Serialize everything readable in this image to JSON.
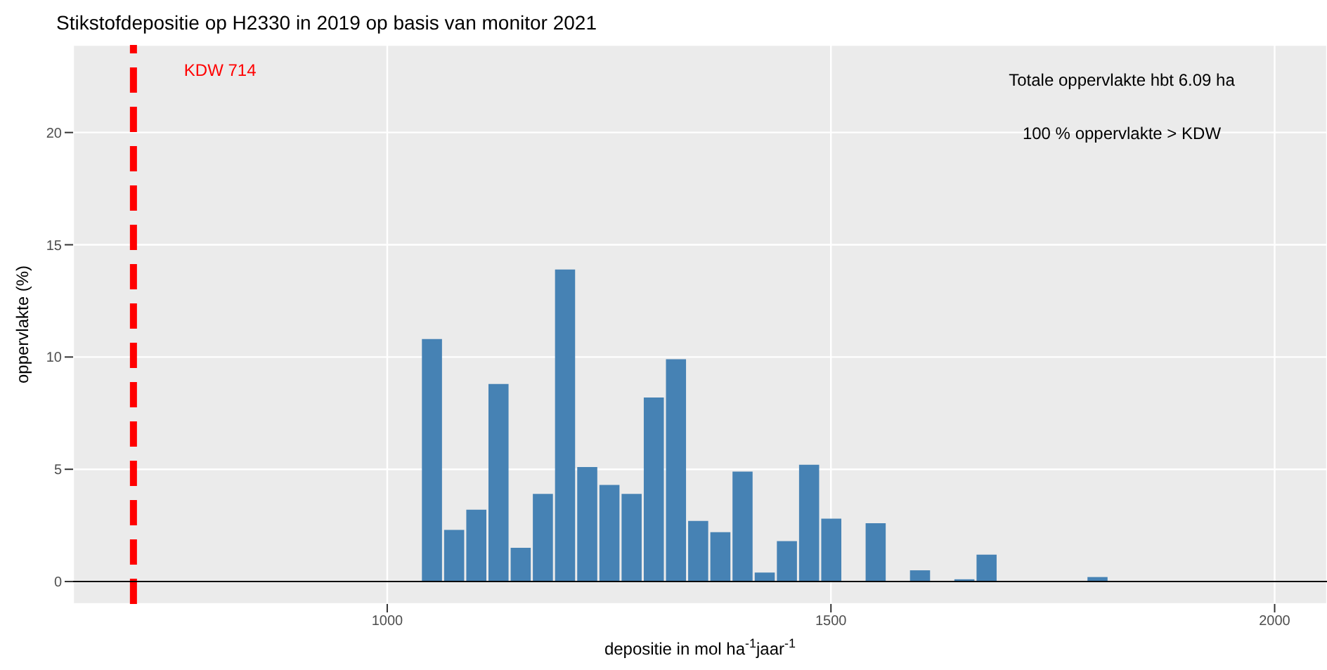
{
  "chart_data": {
    "type": "histogram",
    "title": "Stikstofdepositie op H2330 in 2019 op basis van monitor 2021",
    "xlabel": "depositie in mol ha$^{-1}$jaar$^{-1}$",
    "ylabel": "oppervlakte (%)",
    "bins": [
      1037.5,
      1062.5,
      1087.5,
      1112.5,
      1137.5,
      1162.5,
      1187.5,
      1212.5,
      1237.5,
      1262.5,
      1287.5,
      1312.5,
      1337.5,
      1362.5,
      1387.5,
      1412.5,
      1437.5,
      1462.5,
      1487.5,
      1512.5,
      1537.5,
      1562.5,
      1587.5,
      1612.5,
      1637.5,
      1662.5,
      1687.5,
      1712.5,
      1737.5,
      1762.5,
      1787.5,
      1812.5
    ],
    "values": [
      10.8,
      2.3,
      3.2,
      8.8,
      1.5,
      3.9,
      13.9,
      5.1,
      4.3,
      3.9,
      8.2,
      9.9,
      2.7,
      2.2,
      4.9,
      0.4,
      1.8,
      5.2,
      2.8,
      0,
      2.6,
      0,
      0.5,
      0,
      0.1,
      1.2,
      0,
      0,
      0,
      0,
      0.2
    ],
    "color": "#4682b4",
    "xlim": [
      646,
      2059
    ],
    "xticks": [
      1000,
      1500,
      2000
    ],
    "ylim": [
      -1,
      23.9
    ],
    "yticks": [
      0,
      5,
      10,
      15,
      20
    ],
    "grid": true,
    "ref_lines": [
      {
        "axis": "x",
        "value": 714,
        "label": "KDW 714",
        "color": "#ff0000",
        "line_style": "dashed"
      },
      {
        "axis": "y",
        "value": 0,
        "color": "#000000",
        "line_style": "solid"
      }
    ],
    "annotations": [
      "Totale oppervlakte hbt 6.09 ha",
      "100 % oppervlakte > KDW"
    ]
  }
}
